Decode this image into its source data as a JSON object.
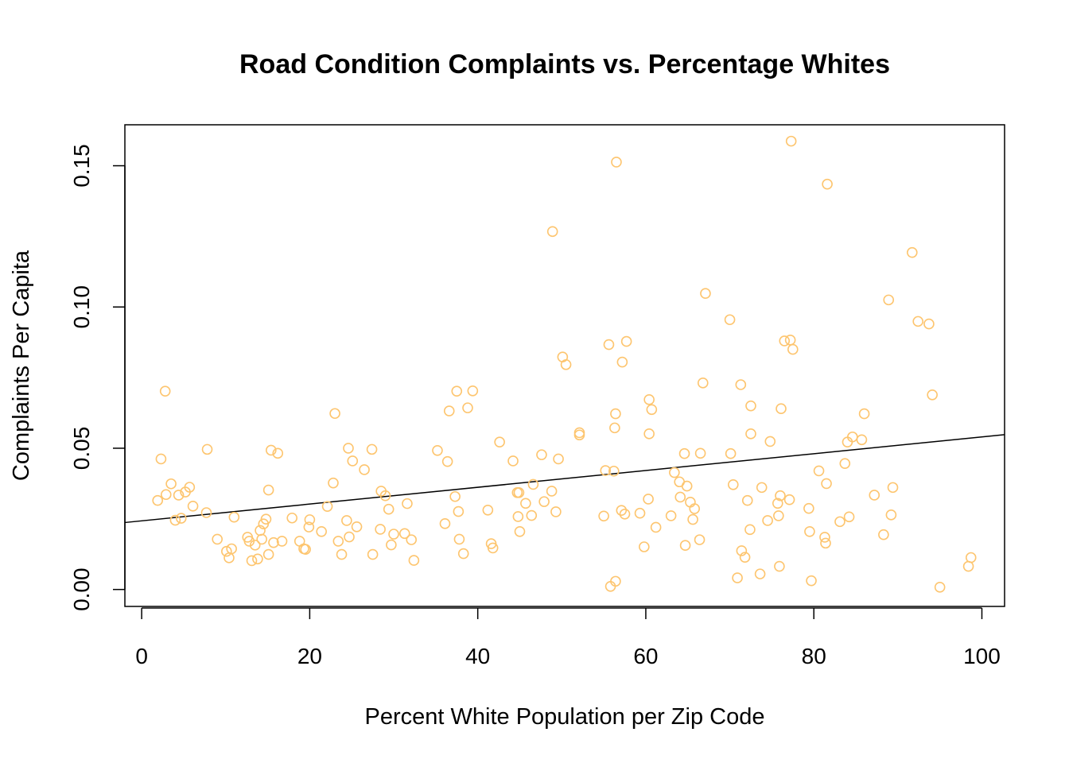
{
  "chart_data": {
    "type": "scatter",
    "title": "Road Condition Complaints vs. Percentage Whites",
    "xlabel": "Percent White Population per Zip Code",
    "ylabel": "Complaints Per Capita",
    "xlim": [
      -2,
      102.7
    ],
    "ylim": [
      -0.006,
      0.1645
    ],
    "x_ticks": [
      0,
      20,
      40,
      60,
      80,
      100
    ],
    "x_tick_labels": [
      "0",
      "20",
      "40",
      "60",
      "80",
      "100"
    ],
    "y_ticks": [
      0.0,
      0.05,
      0.1,
      0.15
    ],
    "y_tick_labels": [
      "0.00",
      "0.05",
      "0.10",
      "0.15"
    ],
    "point_color": "#FDC56F",
    "line_color": "#000000",
    "grid": false,
    "regression_line": {
      "x": [
        -2,
        102.7
      ],
      "y": [
        0.0237,
        0.0548
      ]
    },
    "points": [
      [
        1.9,
        0.0315
      ],
      [
        2.3,
        0.0462
      ],
      [
        2.8,
        0.0702
      ],
      [
        2.9,
        0.0336
      ],
      [
        3.5,
        0.0374
      ],
      [
        4,
        0.0245
      ],
      [
        4.4,
        0.0334
      ],
      [
        4.7,
        0.0252
      ],
      [
        5.2,
        0.0345
      ],
      [
        5.7,
        0.0362
      ],
      [
        6.1,
        0.0295
      ],
      [
        7.7,
        0.0272
      ],
      [
        7.8,
        0.0496
      ],
      [
        9.0,
        0.0178
      ],
      [
        10.1,
        0.0135
      ],
      [
        10.4,
        0.0112
      ],
      [
        10.7,
        0.0144
      ],
      [
        11,
        0.0256
      ],
      [
        12.6,
        0.0185
      ],
      [
        12.8,
        0.0171
      ],
      [
        13.1,
        0.0102
      ],
      [
        13.5,
        0.0157
      ],
      [
        13.8,
        0.0108
      ],
      [
        14.1,
        0.0209
      ],
      [
        14.3,
        0.0178
      ],
      [
        14.5,
        0.0232
      ],
      [
        14.8,
        0.0249
      ],
      [
        15.1,
        0.0352
      ],
      [
        15.1,
        0.0124
      ],
      [
        15.4,
        0.0493
      ],
      [
        15.7,
        0.0166
      ],
      [
        16.2,
        0.0482
      ],
      [
        16.7,
        0.0171
      ],
      [
        17.9,
        0.0253
      ],
      [
        18.8,
        0.0171
      ],
      [
        19.3,
        0.0144
      ],
      [
        19.5,
        0.0142
      ],
      [
        19.9,
        0.0221
      ],
      [
        20,
        0.0247
      ],
      [
        21.4,
        0.0205
      ],
      [
        22.1,
        0.0294
      ],
      [
        22.8,
        0.0377
      ],
      [
        23,
        0.0623
      ],
      [
        23.4,
        0.0171
      ],
      [
        23.8,
        0.0124
      ],
      [
        24.4,
        0.0244
      ],
      [
        24.6,
        0.05
      ],
      [
        24.7,
        0.0186
      ],
      [
        25.1,
        0.0455
      ],
      [
        25.6,
        0.0222
      ],
      [
        26.5,
        0.0424
      ],
      [
        27.4,
        0.0496
      ],
      [
        27.5,
        0.0124
      ],
      [
        28.4,
        0.0213
      ],
      [
        28.5,
        0.0348
      ],
      [
        29,
        0.0332
      ],
      [
        29.4,
        0.0284
      ],
      [
        29.7,
        0.0158
      ],
      [
        30,
        0.0196
      ],
      [
        31.3,
        0.0198
      ],
      [
        31.6,
        0.0304
      ],
      [
        32.1,
        0.0176
      ],
      [
        32.4,
        0.0103
      ],
      [
        35.2,
        0.0492
      ],
      [
        36.1,
        0.0233
      ],
      [
        36.4,
        0.0453
      ],
      [
        36.6,
        0.0632
      ],
      [
        37.3,
        0.0329
      ],
      [
        37.5,
        0.0702
      ],
      [
        37.7,
        0.0276
      ],
      [
        37.8,
        0.0178
      ],
      [
        38.3,
        0.0127
      ],
      [
        38.8,
        0.0643
      ],
      [
        39.4,
        0.0703
      ],
      [
        41.2,
        0.0281
      ],
      [
        41.6,
        0.0162
      ],
      [
        41.8,
        0.0147
      ],
      [
        42.6,
        0.0522
      ],
      [
        44.2,
        0.0455
      ],
      [
        44.7,
        0.0343
      ],
      [
        44.8,
        0.0258
      ],
      [
        44.9,
        0.0343
      ],
      [
        45,
        0.0205
      ],
      [
        45.7,
        0.0305
      ],
      [
        46.4,
        0.0262
      ],
      [
        46.6,
        0.0372
      ],
      [
        47.6,
        0.0477
      ],
      [
        47.9,
        0.0311
      ],
      [
        48.8,
        0.0348
      ],
      [
        48.9,
        0.1267
      ],
      [
        49.3,
        0.0275
      ],
      [
        49.6,
        0.0462
      ],
      [
        50.1,
        0.0823
      ],
      [
        50.5,
        0.0796
      ],
      [
        52.1,
        0.0547
      ],
      [
        52.1,
        0.0555
      ],
      [
        55,
        0.026
      ],
      [
        55.2,
        0.0421
      ],
      [
        55.6,
        0.0867
      ],
      [
        55.8,
        0.0011
      ],
      [
        56.2,
        0.0419
      ],
      [
        56.3,
        0.0572
      ],
      [
        56.4,
        0.0622
      ],
      [
        56.4,
        0.0029
      ],
      [
        56.5,
        0.1513
      ],
      [
        57.1,
        0.028
      ],
      [
        57.2,
        0.0805
      ],
      [
        57.5,
        0.0267
      ],
      [
        57.7,
        0.0878
      ],
      [
        59.3,
        0.027
      ],
      [
        59.8,
        0.0151
      ],
      [
        60.3,
        0.032
      ],
      [
        60.4,
        0.0672
      ],
      [
        60.4,
        0.0551
      ],
      [
        60.7,
        0.0637
      ],
      [
        61.2,
        0.022
      ],
      [
        63,
        0.0261
      ],
      [
        63.4,
        0.0414
      ],
      [
        64,
        0.0381
      ],
      [
        64.1,
        0.0327
      ],
      [
        64.6,
        0.0481
      ],
      [
        64.7,
        0.0156
      ],
      [
        64.9,
        0.0366
      ],
      [
        65.3,
        0.0309
      ],
      [
        65.6,
        0.0248
      ],
      [
        65.8,
        0.0286
      ],
      [
        66.4,
        0.0176
      ],
      [
        66.5,
        0.0482
      ],
      [
        66.8,
        0.0731
      ],
      [
        67.1,
        0.1048
      ],
      [
        70,
        0.0955
      ],
      [
        70.1,
        0.0481
      ],
      [
        70.4,
        0.0371
      ],
      [
        70.9,
        0.0041
      ],
      [
        71.3,
        0.0725
      ],
      [
        71.4,
        0.0137
      ],
      [
        71.8,
        0.0114
      ],
      [
        72.1,
        0.0315
      ],
      [
        72.4,
        0.0212
      ],
      [
        72.5,
        0.0551
      ],
      [
        72.5,
        0.065
      ],
      [
        73.6,
        0.0055
      ],
      [
        73.8,
        0.0361
      ],
      [
        74.5,
        0.0244
      ],
      [
        74.8,
        0.0524
      ],
      [
        75.7,
        0.0305
      ],
      [
        75.8,
        0.0261
      ],
      [
        75.9,
        0.0082
      ],
      [
        76,
        0.0332
      ],
      [
        76.1,
        0.064
      ],
      [
        76.5,
        0.088
      ],
      [
        77.1,
        0.0318
      ],
      [
        77.2,
        0.0883
      ],
      [
        77.3,
        0.1587
      ],
      [
        77.5,
        0.085
      ],
      [
        79.4,
        0.0287
      ],
      [
        79.5,
        0.0205
      ],
      [
        79.7,
        0.0031
      ],
      [
        80.6,
        0.042
      ],
      [
        81.3,
        0.0185
      ],
      [
        81.4,
        0.0164
      ],
      [
        81.5,
        0.0375
      ],
      [
        81.6,
        0.1435
      ],
      [
        83.1,
        0.024
      ],
      [
        83.7,
        0.0446
      ],
      [
        84,
        0.0522
      ],
      [
        84.2,
        0.0257
      ],
      [
        84.6,
        0.054
      ],
      [
        85.7,
        0.053
      ],
      [
        86,
        0.0622
      ],
      [
        87.2,
        0.0334
      ],
      [
        88.3,
        0.0194
      ],
      [
        88.9,
        0.1025
      ],
      [
        89.2,
        0.0264
      ],
      [
        89.4,
        0.0361
      ],
      [
        91.7,
        0.1193
      ],
      [
        92.4,
        0.0949
      ],
      [
        93.7,
        0.094
      ],
      [
        94.1,
        0.0689
      ],
      [
        95,
        0.0008
      ],
      [
        98.4,
        0.0082
      ],
      [
        98.7,
        0.0113
      ]
    ]
  }
}
